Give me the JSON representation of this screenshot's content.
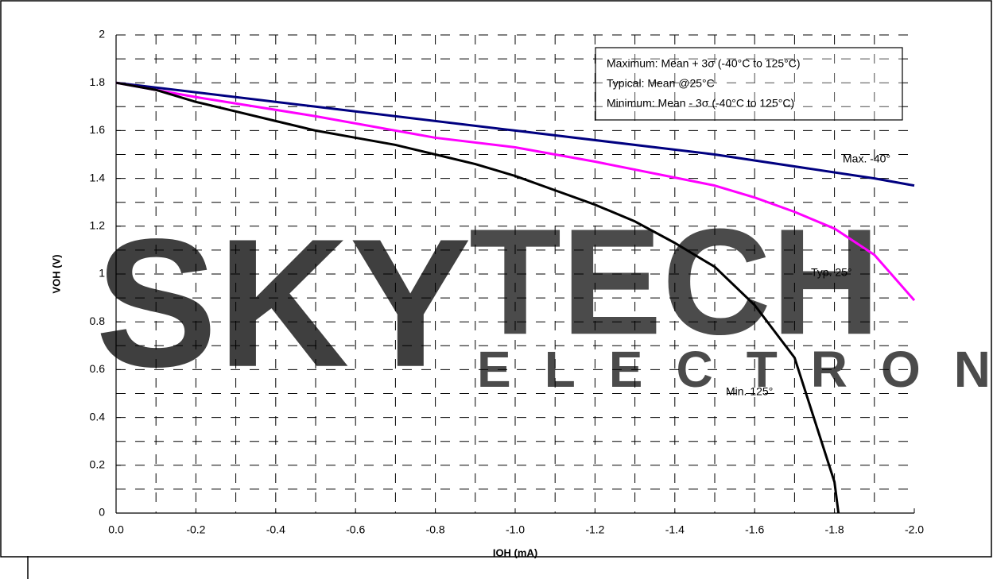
{
  "watermark": [
    "SKY",
    "TECH",
    "ELECTRONIC"
  ],
  "chart_data": {
    "type": "line",
    "xlabel": "IOH (mA)",
    "ylabel": "VOH (V)",
    "xlim": [
      0,
      -2.0
    ],
    "ylim": [
      0,
      2
    ],
    "xticks": [
      {
        "value": 0,
        "label": "0.0"
      },
      -0.2,
      -0.4,
      -0.6,
      -0.8,
      {
        "value": -1.0,
        "label": "-1.0"
      },
      -1.2,
      -1.4,
      -1.6,
      -1.8,
      {
        "value": -2.0,
        "label": "-2.0"
      }
    ],
    "yticks": [
      0,
      0.2,
      0.4,
      0.6,
      0.8,
      1,
      1.2,
      1.4,
      1.6,
      1.8,
      2
    ],
    "grid": true,
    "minor_grid": true,
    "legend_box": [
      "Maximum: Mean + 3σ (-40°C to 125°C)",
      "Typical: Mean @25°C",
      "Minimum: Mean - 3σ (-40°C to 125°C)"
    ],
    "series": [
      {
        "name": "Max. -40°",
        "color": "#000080",
        "x": [
          0,
          -0.5,
          -1.0,
          -1.5,
          -1.9,
          -2.0
        ],
        "values": [
          1.8,
          1.7,
          1.6,
          1.5,
          1.4,
          1.37
        ]
      },
      {
        "name": "Typ. 25°",
        "color": "#ff00ff",
        "x": [
          0,
          -0.1,
          -0.2,
          -0.5,
          -0.8,
          -1.0,
          -1.2,
          -1.5,
          -1.6,
          -1.7,
          -1.8,
          -1.9,
          -2.0
        ],
        "values": [
          1.8,
          1.77,
          1.74,
          1.66,
          1.57,
          1.53,
          1.47,
          1.37,
          1.32,
          1.26,
          1.19,
          1.08,
          0.89
        ]
      },
      {
        "name": "Min. 125°",
        "color": "#000000",
        "x": [
          0,
          -0.1,
          -0.2,
          -0.3,
          -0.4,
          -0.5,
          -0.6,
          -0.7,
          -0.8,
          -0.9,
          -1.0,
          -1.1,
          -1.2,
          -1.3,
          -1.4,
          -1.5,
          -1.6,
          -1.7,
          -1.8,
          -1.81
        ],
        "values": [
          1.8,
          1.77,
          1.72,
          1.68,
          1.64,
          1.6,
          1.57,
          1.54,
          1.5,
          1.46,
          1.41,
          1.35,
          1.29,
          1.22,
          1.13,
          1.03,
          0.87,
          0.65,
          0.13,
          0
        ]
      }
    ]
  }
}
